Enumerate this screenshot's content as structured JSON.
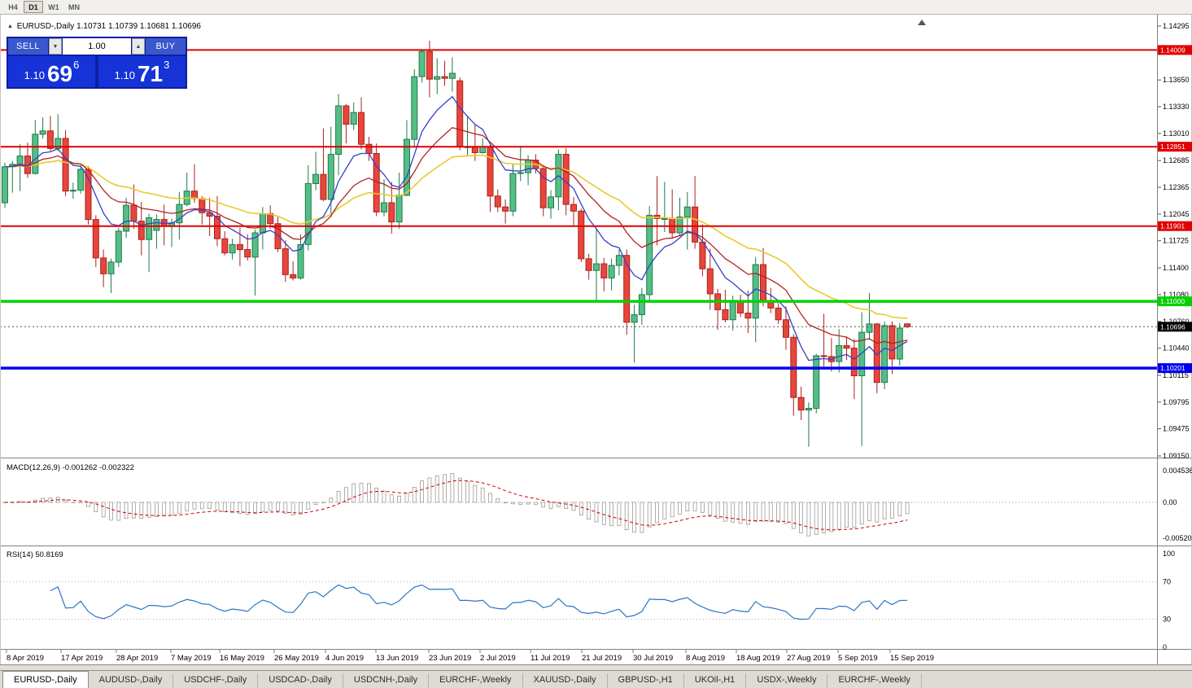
{
  "toolbar": {
    "timeframes": [
      {
        "label": "H4",
        "active": false
      },
      {
        "label": "D1",
        "active": true
      },
      {
        "label": "W1",
        "active": false
      },
      {
        "label": "MN",
        "active": false
      }
    ]
  },
  "chart_header": {
    "marker": "▲",
    "title": "EURUSD-,Daily",
    "ohlc": "1.10731 1.10739 1.10681 1.10696"
  },
  "trade_panel": {
    "sell_label": "SELL",
    "buy_label": "BUY",
    "volume": "1.00",
    "spin_down_icon": "▼",
    "spin_up_icon": "▲",
    "sell_price": {
      "prefix": "1.10",
      "big": "69",
      "sup": "6"
    },
    "buy_price": {
      "prefix": "1.10",
      "big": "71",
      "sup": "3"
    }
  },
  "chart_data": {
    "type": "candlestick",
    "symbol": "EURUSD-",
    "period": "Daily",
    "price_axis": {
      "max": 1.14295,
      "min": 1.0915,
      "ticks": [
        1.14295,
        1.1365,
        1.1333,
        1.1301,
        1.12685,
        1.12365,
        1.12045,
        1.11725,
        1.114,
        1.1108,
        1.1076,
        1.1044,
        1.10115,
        1.09795,
        1.09475,
        1.0915
      ]
    },
    "horizontal_lines": [
      {
        "price": 1.14009,
        "label": "1.14009",
        "color": "#e00000",
        "width": 2
      },
      {
        "price": 1.12851,
        "label": "1.12851",
        "color": "#e00000",
        "width": 2
      },
      {
        "price": 1.11901,
        "label": "1.11901",
        "color": "#e00000",
        "width": 2
      },
      {
        "price": 1.11,
        "label": "1.11000",
        "color": "#00d200",
        "width": 3.5
      },
      {
        "price": 1.10201,
        "label": "1.10201",
        "color": "#0000f0",
        "width": 3.5
      }
    ],
    "current_price": 1.10696,
    "current_price_label": "1.10696",
    "moving_averages": [
      {
        "period": 8,
        "color": "#3640c8"
      },
      {
        "period": 17,
        "color": "#b22222"
      },
      {
        "period": 34,
        "color": "#e8ca30"
      }
    ],
    "date_axis": [
      "8 Apr 2019",
      "17 Apr 2019",
      "28 Apr 2019",
      "7 May 2019",
      "16 May 2019",
      "26 May 2019",
      "4 Jun 2019",
      "13 Jun 2019",
      "23 Jun 2019",
      "2 Jul 2019",
      "11 Jul 2019",
      "21 Jul 2019",
      "30 Jul 2019",
      "8 Aug 2019",
      "18 Aug 2019",
      "27 Aug 2019",
      "5 Sep 2019",
      "15 Sep 2019"
    ],
    "macd": {
      "label": "MACD(12,26,9)",
      "values": "-0.001262 -0.002322",
      "axis_max": "0.004536",
      "axis_zero": "0.00",
      "axis_min": "-0.005205"
    },
    "rsi": {
      "label": "RSI(14)",
      "value": "50.8169",
      "axis": [
        "100",
        "70",
        "30",
        "0"
      ],
      "levels": [
        70,
        30
      ]
    },
    "candles": [
      [
        1.1218,
        1.1266,
        1.1212,
        1.1261
      ],
      [
        1.1261,
        1.1268,
        1.123,
        1.1264
      ],
      [
        1.1264,
        1.1288,
        1.1232,
        1.1274
      ],
      [
        1.1274,
        1.129,
        1.1248,
        1.1253
      ],
      [
        1.1253,
        1.1317,
        1.1252,
        1.13
      ],
      [
        1.13,
        1.132,
        1.1295,
        1.1304
      ],
      [
        1.1304,
        1.1322,
        1.128,
        1.1283
      ],
      [
        1.1283,
        1.1324,
        1.128,
        1.1295
      ],
      [
        1.1295,
        1.1305,
        1.1226,
        1.1232
      ],
      [
        1.1232,
        1.1242,
        1.1223,
        1.1233
      ],
      [
        1.1233,
        1.1263,
        1.1229,
        1.1258
      ],
      [
        1.1258,
        1.1262,
        1.1192,
        1.1198
      ],
      [
        1.1198,
        1.1203,
        1.1141,
        1.1152
      ],
      [
        1.1152,
        1.1162,
        1.1117,
        1.1133
      ],
      [
        1.1133,
        1.1151,
        1.111,
        1.1147
      ],
      [
        1.1147,
        1.1188,
        1.1141,
        1.1184
      ],
      [
        1.1184,
        1.1224,
        1.1176,
        1.1215
      ],
      [
        1.1215,
        1.124,
        1.1187,
        1.1196
      ],
      [
        1.1196,
        1.1219,
        1.1155,
        1.1174
      ],
      [
        1.1174,
        1.1205,
        1.1135,
        1.12
      ],
      [
        1.1185,
        1.1204,
        1.1163,
        1.1198
      ],
      [
        1.1198,
        1.1216,
        1.1167,
        1.119
      ],
      [
        1.119,
        1.1199,
        1.1165,
        1.1194
      ],
      [
        1.1194,
        1.1231,
        1.1174,
        1.1216
      ],
      [
        1.1216,
        1.1254,
        1.1214,
        1.1232
      ],
      [
        1.1232,
        1.1264,
        1.1218,
        1.1223
      ],
      [
        1.1223,
        1.1226,
        1.1192,
        1.1206
      ],
      [
        1.1206,
        1.1224,
        1.1178,
        1.1202
      ],
      [
        1.1202,
        1.1226,
        1.1166,
        1.1175
      ],
      [
        1.1175,
        1.1184,
        1.1155,
        1.1158
      ],
      [
        1.1158,
        1.1175,
        1.115,
        1.1168
      ],
      [
        1.1168,
        1.1188,
        1.1142,
        1.1162
      ],
      [
        1.1162,
        1.118,
        1.1149,
        1.1153
      ],
      [
        1.1153,
        1.1186,
        1.1107,
        1.1182
      ],
      [
        1.1182,
        1.1213,
        1.1162,
        1.1205
      ],
      [
        1.1205,
        1.1215,
        1.1187,
        1.1193
      ],
      [
        1.1193,
        1.1201,
        1.1159,
        1.1163
      ],
      [
        1.1163,
        1.1173,
        1.1123,
        1.1132
      ],
      [
        1.1132,
        1.1148,
        1.1125,
        1.1128
      ],
      [
        1.1128,
        1.118,
        1.1126,
        1.1168
      ],
      [
        1.1168,
        1.1263,
        1.1161,
        1.1241
      ],
      [
        1.1241,
        1.1279,
        1.1233,
        1.1252
      ],
      [
        1.1252,
        1.1307,
        1.122,
        1.1222
      ],
      [
        1.1222,
        1.1309,
        1.1201,
        1.1276
      ],
      [
        1.1276,
        1.1348,
        1.1251,
        1.1334
      ],
      [
        1.1334,
        1.1336,
        1.1289,
        1.1312
      ],
      [
        1.1312,
        1.1338,
        1.1305,
        1.1326
      ],
      [
        1.1326,
        1.1344,
        1.1282,
        1.1288
      ],
      [
        1.1288,
        1.1297,
        1.1268,
        1.1277
      ],
      [
        1.1277,
        1.1289,
        1.1202,
        1.1207
      ],
      [
        1.1207,
        1.1246,
        1.1202,
        1.1218
      ],
      [
        1.1218,
        1.1243,
        1.1181,
        1.1195
      ],
      [
        1.1195,
        1.1254,
        1.1187,
        1.1227
      ],
      [
        1.1227,
        1.1317,
        1.1226,
        1.1294
      ],
      [
        1.1294,
        1.1378,
        1.1285,
        1.1369
      ],
      [
        1.1369,
        1.1402,
        1.1362,
        1.1399
      ],
      [
        1.1399,
        1.1412,
        1.1344,
        1.1366
      ],
      [
        1.1366,
        1.1391,
        1.1348,
        1.1369
      ],
      [
        1.1369,
        1.1388,
        1.1358,
        1.1367
      ],
      [
        1.1367,
        1.1392,
        1.1351,
        1.1373
      ],
      [
        1.1364,
        1.1368,
        1.1281,
        1.1285
      ],
      [
        1.1285,
        1.1322,
        1.1275,
        1.1285
      ],
      [
        1.1285,
        1.1312,
        1.1268,
        1.1278
      ],
      [
        1.1278,
        1.1295,
        1.1277,
        1.1285
      ],
      [
        1.1285,
        1.1289,
        1.1207,
        1.1226
      ],
      [
        1.1226,
        1.1234,
        1.1207,
        1.1213
      ],
      [
        1.1213,
        1.1222,
        1.1193,
        1.1208
      ],
      [
        1.1208,
        1.1264,
        1.1202,
        1.1253
      ],
      [
        1.1253,
        1.1286,
        1.1244,
        1.1254
      ],
      [
        1.1254,
        1.1275,
        1.1239,
        1.1269
      ],
      [
        1.1269,
        1.1276,
        1.1253,
        1.1259
      ],
      [
        1.1259,
        1.1263,
        1.1202,
        1.1212
      ],
      [
        1.1212,
        1.1233,
        1.1199,
        1.1225
      ],
      [
        1.1225,
        1.1282,
        1.1209,
        1.1276
      ],
      [
        1.1276,
        1.1283,
        1.1203,
        1.1216
      ],
      [
        1.1216,
        1.1225,
        1.1191,
        1.1208
      ],
      [
        1.1208,
        1.1211,
        1.1147,
        1.1151
      ],
      [
        1.1151,
        1.1157,
        1.1126,
        1.1137
      ],
      [
        1.1137,
        1.1187,
        1.1101,
        1.1145
      ],
      [
        1.1145,
        1.1152,
        1.1112,
        1.1128
      ],
      [
        1.1128,
        1.1151,
        1.1113,
        1.1143
      ],
      [
        1.1143,
        1.1162,
        1.1131,
        1.1155
      ],
      [
        1.1155,
        1.1162,
        1.106,
        1.1075
      ],
      [
        1.1075,
        1.1096,
        1.1027,
        1.1084
      ],
      [
        1.1084,
        1.1116,
        1.1072,
        1.1108
      ],
      [
        1.1108,
        1.1214,
        1.1101,
        1.1203
      ],
      [
        1.1203,
        1.125,
        1.1167,
        1.1199
      ],
      [
        1.1199,
        1.1243,
        1.1183,
        1.1199
      ],
      [
        1.1199,
        1.1234,
        1.1175,
        1.1182
      ],
      [
        1.1182,
        1.1224,
        1.1178,
        1.1201
      ],
      [
        1.1201,
        1.1231,
        1.1162,
        1.1213
      ],
      [
        1.1213,
        1.125,
        1.1163,
        1.1171
      ],
      [
        1.1171,
        1.1192,
        1.113,
        1.1139
      ],
      [
        1.1139,
        1.1163,
        1.109,
        1.1109
      ],
      [
        1.1109,
        1.1115,
        1.1066,
        1.109
      ],
      [
        1.109,
        1.1114,
        1.1075,
        1.1078
      ],
      [
        1.1078,
        1.1107,
        1.1065,
        1.11
      ],
      [
        1.11,
        1.1108,
        1.1081,
        1.1086
      ],
      [
        1.1086,
        1.1113,
        1.1062,
        1.108
      ],
      [
        1.108,
        1.1153,
        1.1051,
        1.1144
      ],
      [
        1.1144,
        1.1164,
        1.1094,
        1.1101
      ],
      [
        1.1101,
        1.1116,
        1.1086,
        1.1092
      ],
      [
        1.1092,
        1.1098,
        1.1073,
        1.1078
      ],
      [
        1.1078,
        1.1094,
        1.1042,
        1.1057
      ],
      [
        1.1057,
        1.1061,
        1.0963,
        1.0985
      ],
      [
        1.0985,
        1.0998,
        1.0958,
        1.097
      ],
      [
        1.097,
        1.0979,
        1.0926,
        1.0972
      ],
      [
        1.0972,
        1.1037,
        1.0966,
        1.1035
      ],
      [
        1.1035,
        1.1085,
        1.1022,
        1.1034
      ],
      [
        1.1034,
        1.1056,
        1.1016,
        1.1028
      ],
      [
        1.1028,
        1.1067,
        1.1015,
        1.1047
      ],
      [
        1.1047,
        1.1058,
        1.103,
        1.1044
      ],
      [
        1.1044,
        1.1055,
        1.0983,
        1.1011
      ],
      [
        1.1011,
        1.1087,
        1.0927,
        1.1063
      ],
      [
        1.1063,
        1.111,
        1.1054,
        1.1073
      ],
      [
        1.1073,
        1.1074,
        1.099,
        1.1003
      ],
      [
        1.1003,
        1.1076,
        1.0995,
        1.1071
      ],
      [
        1.1071,
        1.1076,
        1.1013,
        1.1031
      ],
      [
        1.1031,
        1.1074,
        1.1023,
        1.1068
      ],
      [
        1.10731,
        1.10739,
        1.10681,
        1.10696
      ]
    ]
  },
  "tabs": [
    {
      "label": "EURUSD-,Daily",
      "active": true
    },
    {
      "label": "AUDUSD-,Daily",
      "active": false
    },
    {
      "label": "USDCHF-,Daily",
      "active": false
    },
    {
      "label": "USDCAD-,Daily",
      "active": false
    },
    {
      "label": "USDCNH-,Daily",
      "active": false
    },
    {
      "label": "EURCHF-,Weekly",
      "active": false
    },
    {
      "label": "XAUUSD-,Daily",
      "active": false
    },
    {
      "label": "GBPUSD-,H1",
      "active": false
    },
    {
      "label": "UKOil-,H1",
      "active": false
    },
    {
      "label": "USDX-,Weekly",
      "active": false
    },
    {
      "label": "EURCHF-,Weekly",
      "active": false
    }
  ]
}
